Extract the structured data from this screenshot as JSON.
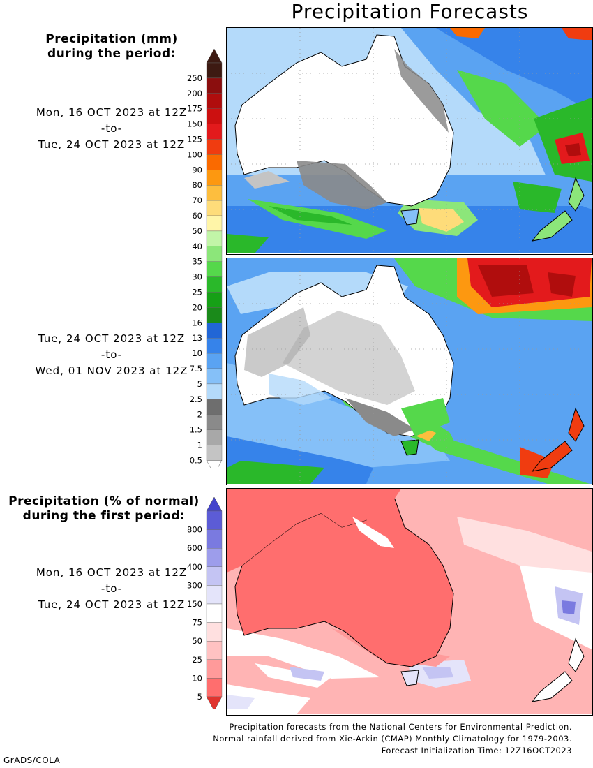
{
  "title": "Precipitation Forecasts",
  "amount_legend": {
    "heading_line1": "Precipitation (mm)",
    "heading_line2": "during the period:",
    "levels": [
      "250",
      "200",
      "175",
      "150",
      "125",
      "100",
      "90",
      "80",
      "70",
      "60",
      "50",
      "40",
      "35",
      "30",
      "25",
      "20",
      "16",
      "13",
      "10",
      "7.5",
      "5",
      "2.5",
      "2",
      "1.5",
      "1",
      "0.5"
    ],
    "colors": [
      "#3d1a12",
      "#8b0e0e",
      "#b00d0d",
      "#cc1010",
      "#e31a1c",
      "#f03c10",
      "#fa6a00",
      "#fd9810",
      "#fdbe3e",
      "#fedc7a",
      "#fff5a8",
      "#c2f5a8",
      "#8ce67a",
      "#55d84b",
      "#2ab82a",
      "#16a016",
      "#1a8a1a",
      "#2166d6",
      "#3683ea",
      "#5aa3f2",
      "#85c0f8",
      "#b4dafa",
      "#6e6e6e",
      "#8a8a8a",
      "#a8a8a8",
      "#c4c4c4"
    ],
    "top_arrow_color": "#3d1a12"
  },
  "period1": {
    "start": "Mon, 16 OCT 2023 at 12Z",
    "sep": "-to-",
    "end": "Tue, 24 OCT 2023 at 12Z"
  },
  "period2": {
    "start": "Tue, 24 OCT 2023 at 12Z",
    "sep": "-to-",
    "end": "Wed, 01 NOV 2023 at 12Z"
  },
  "anomaly_legend": {
    "heading_line1": "Precipitation (% of normal)",
    "heading_line2": "during the first period:",
    "levels": [
      "800",
      "600",
      "400",
      "300",
      "150",
      "75",
      "50",
      "25",
      "10",
      "5"
    ],
    "colors": [
      "#5c5cd6",
      "#7a7ae0",
      "#9d9deb",
      "#c4c4f3",
      "#e4e4fa",
      "#ffffff",
      "#ffe0e0",
      "#ffc2c2",
      "#ff9a9a",
      "#ff6e6e"
    ],
    "top_arrow_color": "#4545cc",
    "bottom_arrow_color": "#e0342f"
  },
  "period3": {
    "start": "Mon, 16 OCT 2023 at 12Z",
    "sep": "-to-",
    "end": "Tue, 24 OCT 2023 at 12Z"
  },
  "footer": {
    "line1": "Precipitation forecasts from the National Centers for Environmental Prediction.",
    "line2": "Normal rainfall derived from Xie-Arkin (CMAP) Monthly Climatology for 1979-2003.",
    "line3": "Forecast Initialization Time: 12Z16OCT2023"
  },
  "credit": "GrADS/COLA"
}
